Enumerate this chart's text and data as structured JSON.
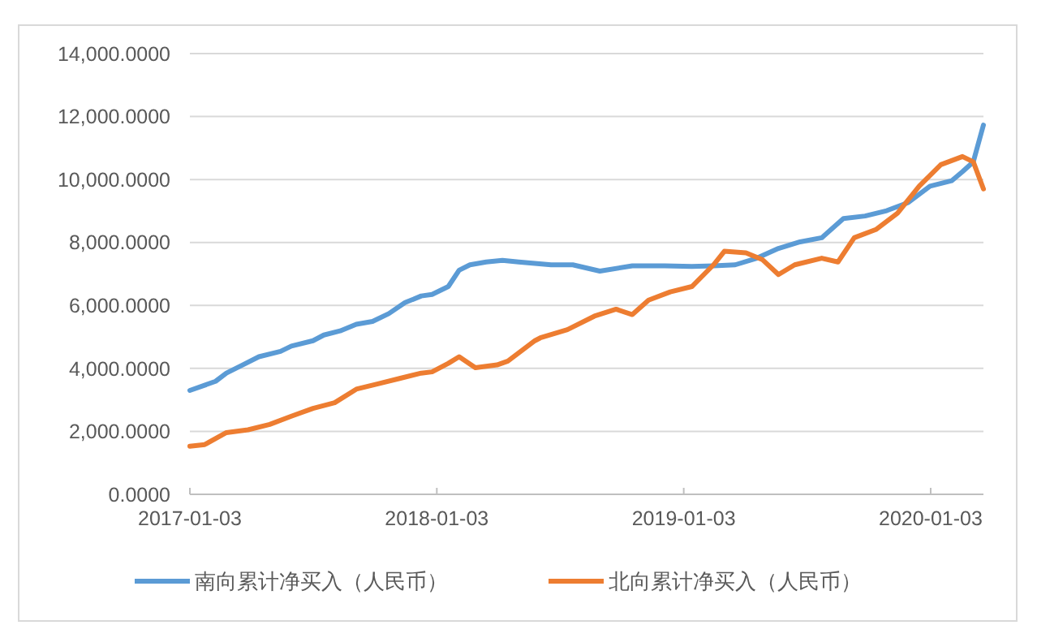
{
  "chart_data": {
    "type": "line",
    "xlim": [
      "2017-01-03",
      "2020-03-21"
    ],
    "ylim": [
      0,
      14000
    ],
    "xticks": [
      "2017-01-03",
      "2018-01-03",
      "2019-01-03",
      "2020-01-03"
    ],
    "yticks": [
      {
        "value": 0,
        "label": "0.0000"
      },
      {
        "value": 2000,
        "label": "2,000.0000"
      },
      {
        "value": 4000,
        "label": "4,000.0000"
      },
      {
        "value": 6000,
        "label": "6,000.0000"
      },
      {
        "value": 8000,
        "label": "8,000.0000"
      },
      {
        "value": 10000,
        "label": "10,000.0000"
      },
      {
        "value": 12000,
        "label": "12,000.0000"
      },
      {
        "value": 14000,
        "label": "14,000.0000"
      }
    ],
    "grid": "y",
    "legend": "bottom",
    "line_style": "solid",
    "marker": "none",
    "series": [
      {
        "name": "南向累计净买入（人民币）",
        "color": "#5b9bd5",
        "x": [
          "2017-01-03",
          "2017-02-10",
          "2017-02-26",
          "2017-03-22",
          "2017-04-15",
          "2017-05-17",
          "2017-06-02",
          "2017-07-04",
          "2017-07-20",
          "2017-08-13",
          "2017-09-06",
          "2017-09-30",
          "2017-10-24",
          "2017-11-17",
          "2017-12-11",
          "2017-12-27",
          "2018-01-20",
          "2018-02-05",
          "2018-02-21",
          "2018-03-17",
          "2018-04-10",
          "2018-05-04",
          "2018-06-21",
          "2018-07-23",
          "2018-09-01",
          "2018-10-19",
          "2018-12-06",
          "2019-01-15",
          "2019-02-16",
          "2019-03-20",
          "2019-04-21",
          "2019-05-23",
          "2019-06-24",
          "2019-07-26",
          "2019-08-27",
          "2019-09-28",
          "2019-10-30",
          "2019-12-01",
          "2020-01-02",
          "2020-02-03",
          "2020-02-19",
          "2020-03-06",
          "2020-03-21"
        ],
        "values": [
          3300,
          3590,
          3850,
          4110,
          4370,
          4540,
          4710,
          4880,
          5060,
          5190,
          5400,
          5490,
          5740,
          6090,
          6300,
          6350,
          6600,
          7120,
          7290,
          7380,
          7430,
          7380,
          7290,
          7290,
          7090,
          7260,
          7260,
          7240,
          7260,
          7290,
          7500,
          7810,
          8020,
          8150,
          8760,
          8840,
          9010,
          9270,
          9790,
          9960,
          10250,
          10560,
          11730
        ]
      },
      {
        "name": "北向累计净买入（人民币）",
        "color": "#ed7d31",
        "x": [
          "2017-01-03",
          "2017-01-25",
          "2017-02-26",
          "2017-03-30",
          "2017-05-01",
          "2017-06-02",
          "2017-07-04",
          "2017-08-05",
          "2017-09-06",
          "2017-10-08",
          "2017-11-09",
          "2017-12-11",
          "2017-12-27",
          "2018-01-20",
          "2018-02-05",
          "2018-03-01",
          "2018-04-02",
          "2018-04-18",
          "2018-05-28",
          "2018-06-05",
          "2018-07-15",
          "2018-08-24",
          "2018-09-25",
          "2018-10-19",
          "2018-11-12",
          "2018-12-14",
          "2019-01-15",
          "2019-02-16",
          "2019-03-04",
          "2019-04-05",
          "2019-04-29",
          "2019-05-23",
          "2019-06-16",
          "2019-07-26",
          "2019-08-19",
          "2019-09-12",
          "2019-10-14",
          "2019-11-15",
          "2019-12-17",
          "2020-01-18",
          "2020-02-19",
          "2020-03-06",
          "2020-03-21"
        ],
        "values": [
          1530,
          1580,
          1960,
          2050,
          2220,
          2480,
          2730,
          2910,
          3340,
          3510,
          3680,
          3850,
          3890,
          4160,
          4370,
          4020,
          4110,
          4230,
          4880,
          4970,
          5230,
          5660,
          5880,
          5710,
          6170,
          6430,
          6600,
          7290,
          7720,
          7670,
          7460,
          6980,
          7290,
          7500,
          7380,
          8150,
          8410,
          8930,
          9790,
          10470,
          10730,
          10560,
          9700
        ]
      }
    ]
  }
}
